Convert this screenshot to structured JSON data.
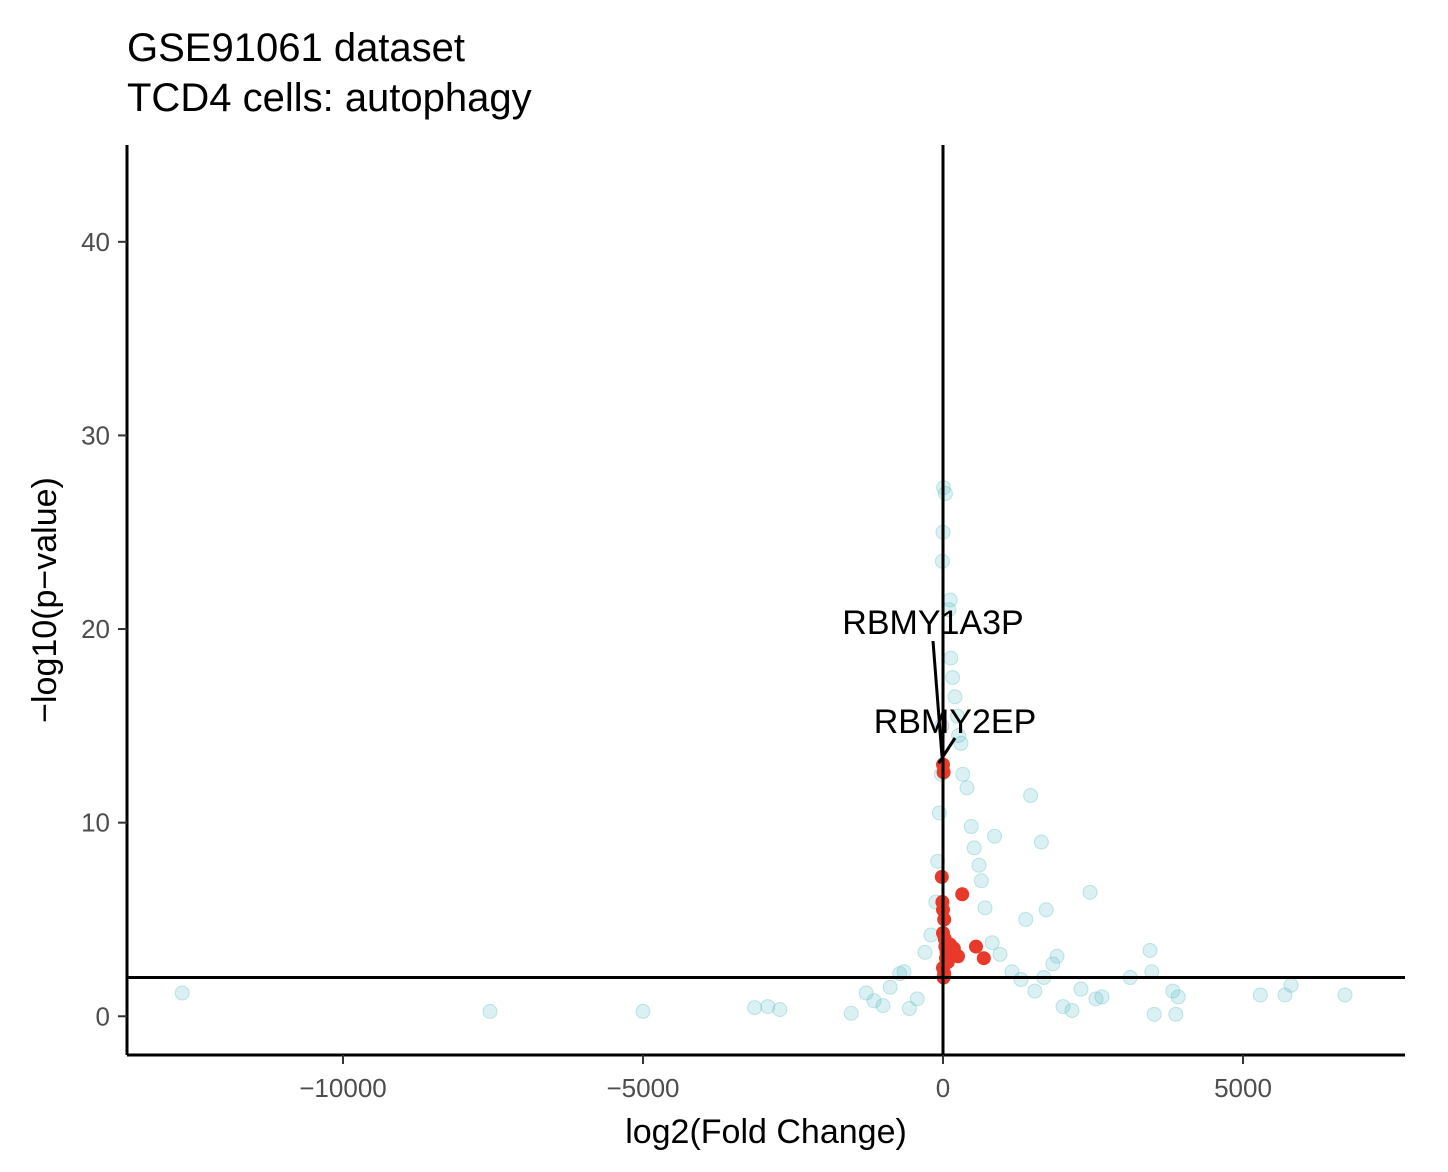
{
  "chart_data": {
    "type": "scatter",
    "title": "GSE91061 dataset",
    "subtitle": "TCD4 cells: autophagy",
    "xlabel": "log2(Fold Change)",
    "ylabel": "−log10(p−value)",
    "xlim": [
      -13600,
      7700
    ],
    "ylim": [
      -2,
      45
    ],
    "xticks": [
      -10000,
      -5000,
      0,
      5000
    ],
    "xtick_labels": [
      "−10000",
      "−5000",
      "0",
      "5000"
    ],
    "yticks": [
      0,
      10,
      20,
      30,
      40
    ],
    "ytick_labels": [
      "0",
      "10",
      "20",
      "30",
      "40"
    ],
    "reference_lines": {
      "vertical_x": 0,
      "horizontal_y": 2.0
    },
    "grid": false,
    "legend": "none",
    "colors": {
      "background_genes": "#56bcc2",
      "highlighted_genes": "#e8392a"
    },
    "series": [
      {
        "points": [
          [
            -12680,
            1.2
          ],
          [
            -7550,
            0.25
          ],
          [
            -5000,
            0.25
          ],
          [
            -3140,
            0.45
          ],
          [
            -2920,
            0.5
          ],
          [
            -2720,
            0.35
          ],
          [
            -1530,
            0.15
          ],
          [
            -1280,
            1.2
          ],
          [
            -1150,
            0.8
          ],
          [
            -1000,
            0.55
          ],
          [
            -880,
            1.5
          ],
          [
            -720,
            2.2
          ],
          [
            -650,
            2.3
          ],
          [
            -560,
            0.4
          ],
          [
            -430,
            0.9
          ],
          [
            -300,
            3.3
          ],
          [
            -200,
            4.2
          ],
          [
            -120,
            5.9
          ],
          [
            -90,
            8.0
          ],
          [
            -60,
            10.5
          ],
          [
            -30,
            12.5
          ],
          [
            -20,
            15.0
          ],
          [
            -10,
            23.5
          ],
          [
            0,
            25.0
          ],
          [
            10,
            27.3
          ],
          [
            40,
            27.0
          ],
          [
            100,
            21.0
          ],
          [
            120,
            21.5
          ],
          [
            130,
            18.5
          ],
          [
            160,
            17.5
          ],
          [
            200,
            16.5
          ],
          [
            240,
            15.5
          ],
          [
            260,
            14.5
          ],
          [
            300,
            14.1
          ],
          [
            330,
            12.5
          ],
          [
            400,
            11.8
          ],
          [
            470,
            9.8
          ],
          [
            520,
            8.7
          ],
          [
            600,
            7.8
          ],
          [
            640,
            7.0
          ],
          [
            700,
            5.6
          ],
          [
            820,
            3.8
          ],
          [
            860,
            9.3
          ],
          [
            950,
            3.2
          ],
          [
            1150,
            2.3
          ],
          [
            1300,
            1.9
          ],
          [
            1380,
            5.0
          ],
          [
            1460,
            11.4
          ],
          [
            1530,
            1.3
          ],
          [
            1640,
            9.0
          ],
          [
            1680,
            2.0
          ],
          [
            1720,
            5.5
          ],
          [
            1830,
            2.7
          ],
          [
            1900,
            3.1
          ],
          [
            2000,
            0.5
          ],
          [
            2150,
            0.3
          ],
          [
            2300,
            1.4
          ],
          [
            2450,
            6.4
          ],
          [
            2550,
            0.9
          ],
          [
            2650,
            1.0
          ],
          [
            3120,
            2.0
          ],
          [
            3450,
            3.4
          ],
          [
            3480,
            2.3
          ],
          [
            3520,
            0.1
          ],
          [
            3830,
            1.3
          ],
          [
            3880,
            0.1
          ],
          [
            3920,
            1.0
          ],
          [
            5290,
            1.1
          ],
          [
            5700,
            1.1
          ],
          [
            5800,
            1.6
          ],
          [
            6700,
            1.1
          ]
        ]
      },
      {
        "points": [
          [
            0,
            13.0
          ],
          [
            10,
            12.6
          ],
          [
            -20,
            7.2
          ],
          [
            -10,
            5.9
          ],
          [
            0,
            5.5
          ],
          [
            20,
            5.0
          ],
          [
            0,
            4.3
          ],
          [
            30,
            4.0
          ],
          [
            40,
            3.6
          ],
          [
            60,
            3.3
          ],
          [
            50,
            3.0
          ],
          [
            80,
            2.8
          ],
          [
            0,
            2.5
          ],
          [
            20,
            2.2
          ],
          [
            10,
            2.0
          ],
          [
            120,
            3.7
          ],
          [
            180,
            3.5
          ],
          [
            250,
            3.1
          ],
          [
            320,
            6.3
          ],
          [
            550,
            3.6
          ],
          [
            680,
            3.0
          ]
        ]
      }
    ],
    "annotations": [
      {
        "label": "RBMY1A3P",
        "x": 0,
        "y": 13.0
      },
      {
        "label": "RBMY2EP",
        "x": 10,
        "y": 12.6
      }
    ]
  }
}
